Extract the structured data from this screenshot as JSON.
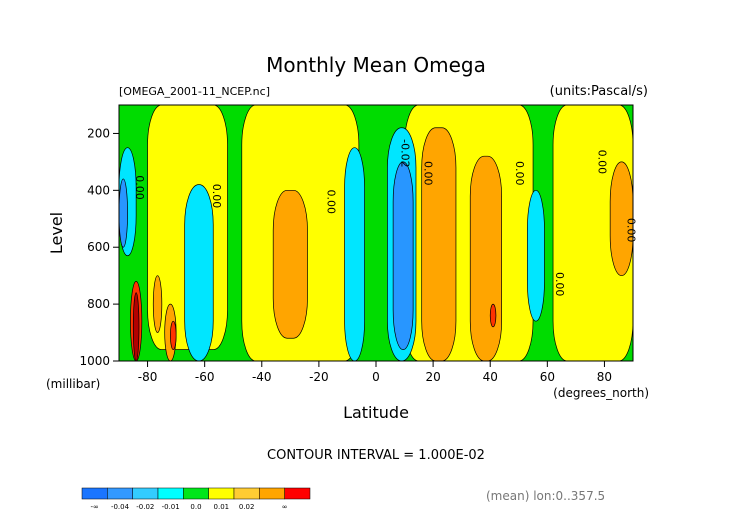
{
  "chart_data": {
    "type": "heatmap",
    "title": "Monthly Mean Omega",
    "file_label": "[OMEGA_2001-11_NCEP.nc]",
    "units_label": "(units:Pascal/s)",
    "xlabel": "Latitude",
    "x_units": "(degrees_north)",
    "ylabel": "Level",
    "y_units": "(millibar)",
    "xlim": [
      -90,
      90
    ],
    "ylim": [
      1000,
      100
    ],
    "x_ticks": [
      -80,
      -60,
      -40,
      -20,
      0,
      20,
      40,
      60,
      80
    ],
    "x_tick_labels": [
      "-80",
      "-60",
      "-40",
      "-20",
      "0",
      "20",
      "40",
      "60",
      "80"
    ],
    "y_ticks": [
      200,
      400,
      600,
      800,
      1000
    ],
    "y_tick_labels": [
      "200",
      "400",
      "600",
      "800",
      "1000"
    ],
    "contour_interval_text": "CONTOUR INTERVAL = 1.000E-02",
    "mean_text": "(mean) lon:0..357.5",
    "contour_labels": [
      {
        "lat": -84,
        "lev": 390,
        "text": "0.00"
      },
      {
        "lat": -57,
        "lev": 420,
        "text": "0.00"
      },
      {
        "lat": -17,
        "lev": 440,
        "text": "0.00"
      },
      {
        "lat": 9,
        "lev": 270,
        "text": "-0.02"
      },
      {
        "lat": 17,
        "lev": 340,
        "text": "0.00"
      },
      {
        "lat": 49,
        "lev": 340,
        "text": "0.00"
      },
      {
        "lat": 63,
        "lev": 730,
        "text": "0.00"
      },
      {
        "lat": 78,
        "lev": 300,
        "text": "0.00"
      },
      {
        "lat": 88,
        "lev": 540,
        "text": "0.00"
      }
    ],
    "colorbar": {
      "colors": [
        "#1a75ff",
        "#3399ff",
        "#33ccff",
        "#00ffff",
        "#00e61a",
        "#ffff00",
        "#ffcc33",
        "#ffa500",
        "#ff0000"
      ],
      "labels": [
        "-∞",
        "-0.04",
        "-0.02",
        "-0.01",
        "0.0",
        "0.01",
        "0.02",
        "∞"
      ]
    },
    "colors": {
      "c_m04": "#1e78e6",
      "c_m03": "#2896ff",
      "c_m01": "#00e6ff",
      "c_zero": "#00dc00",
      "c_p01": "#ffff00",
      "c_p02": "#ffa500",
      "c_p03": "#ff3300",
      "c_p04": "#b40000",
      "outline": "#000000"
    },
    "regions": [
      {
        "level": "c_zero",
        "lat": [
          -90,
          90
        ],
        "lev": [
          100,
          1000
        ]
      },
      {
        "level": "c_p01",
        "lat": [
          -80,
          -52
        ],
        "lev": [
          100,
          960
        ]
      },
      {
        "level": "c_p01",
        "lat": [
          -47,
          -6
        ],
        "lev": [
          100,
          1000
        ]
      },
      {
        "level": "c_p01",
        "lat": [
          10,
          55
        ],
        "lev": [
          100,
          1000
        ]
      },
      {
        "level": "c_p01",
        "lat": [
          62,
          90
        ],
        "lev": [
          100,
          1000
        ]
      },
      {
        "level": "c_m01",
        "lat": [
          -90,
          -84
        ],
        "lev": [
          250,
          630
        ]
      },
      {
        "level": "c_m03",
        "lat": [
          -90,
          -87
        ],
        "lev": [
          360,
          600
        ]
      },
      {
        "level": "c_m01",
        "lat": [
          -67,
          -57
        ],
        "lev": [
          380,
          1000
        ]
      },
      {
        "level": "c_m01",
        "lat": [
          -11,
          -4
        ],
        "lev": [
          250,
          1000
        ]
      },
      {
        "level": "c_m01",
        "lat": [
          4,
          14
        ],
        "lev": [
          180,
          1000
        ]
      },
      {
        "level": "c_m03",
        "lat": [
          6,
          13
        ],
        "lev": [
          300,
          960
        ]
      },
      {
        "level": "c_m01",
        "lat": [
          53,
          59
        ],
        "lev": [
          400,
          860
        ]
      },
      {
        "level": "c_p02",
        "lat": [
          -36,
          -24
        ],
        "lev": [
          400,
          920
        ]
      },
      {
        "level": "c_p02",
        "lat": [
          16,
          28
        ],
        "lev": [
          180,
          1000
        ]
      },
      {
        "level": "c_p02",
        "lat": [
          33,
          44
        ],
        "lev": [
          280,
          1000
        ]
      },
      {
        "level": "c_p02",
        "lat": [
          82,
          90
        ],
        "lev": [
          300,
          700
        ]
      },
      {
        "level": "c_p02",
        "lat": [
          -78,
          -75
        ],
        "lev": [
          700,
          900
        ]
      },
      {
        "level": "c_p02",
        "lat": [
          -74,
          -70
        ],
        "lev": [
          800,
          1000
        ]
      },
      {
        "level": "c_p03",
        "lat": [
          -86,
          -82
        ],
        "lev": [
          720,
          1000
        ]
      },
      {
        "level": "c_p04",
        "lat": [
          -85,
          -83
        ],
        "lev": [
          760,
          1000
        ]
      },
      {
        "level": "c_p03",
        "lat": [
          -72,
          -70
        ],
        "lev": [
          860,
          960
        ]
      },
      {
        "level": "c_p03",
        "lat": [
          40,
          42
        ],
        "lev": [
          800,
          880
        ]
      }
    ]
  }
}
